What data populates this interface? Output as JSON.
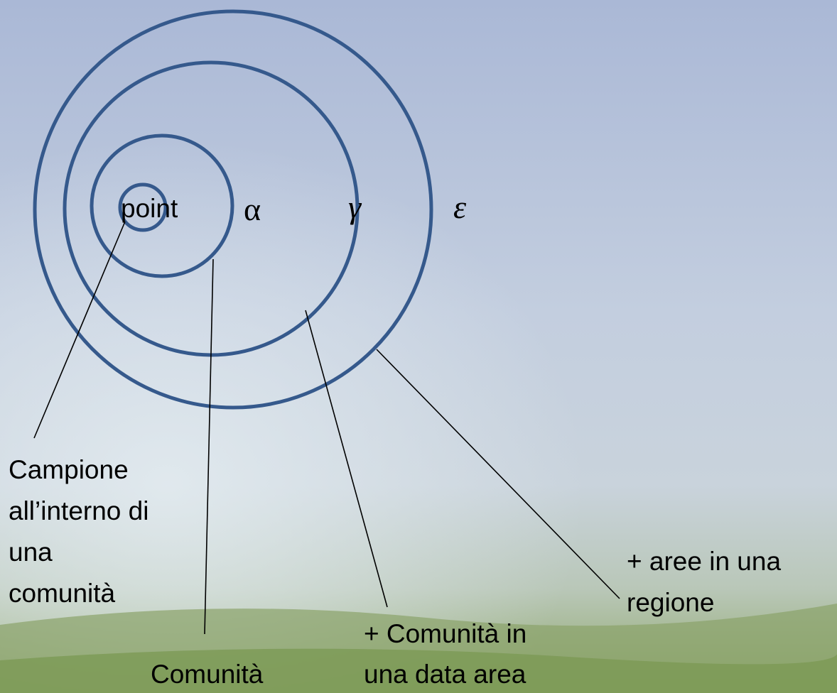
{
  "diagram": {
    "rings": [
      {
        "label": "point"
      },
      {
        "label": "α"
      },
      {
        "label": "γ"
      },
      {
        "label": "ε"
      }
    ],
    "annotations": [
      {
        "lines": [
          "Campione",
          "all’interno di",
          "una",
          "comunità"
        ]
      },
      {
        "lines": [
          "Comunità"
        ]
      },
      {
        "lines": [
          "+ Comunità in",
          "una data area"
        ]
      },
      {
        "lines": [
          "+ aree in una",
          "regione"
        ]
      }
    ]
  }
}
